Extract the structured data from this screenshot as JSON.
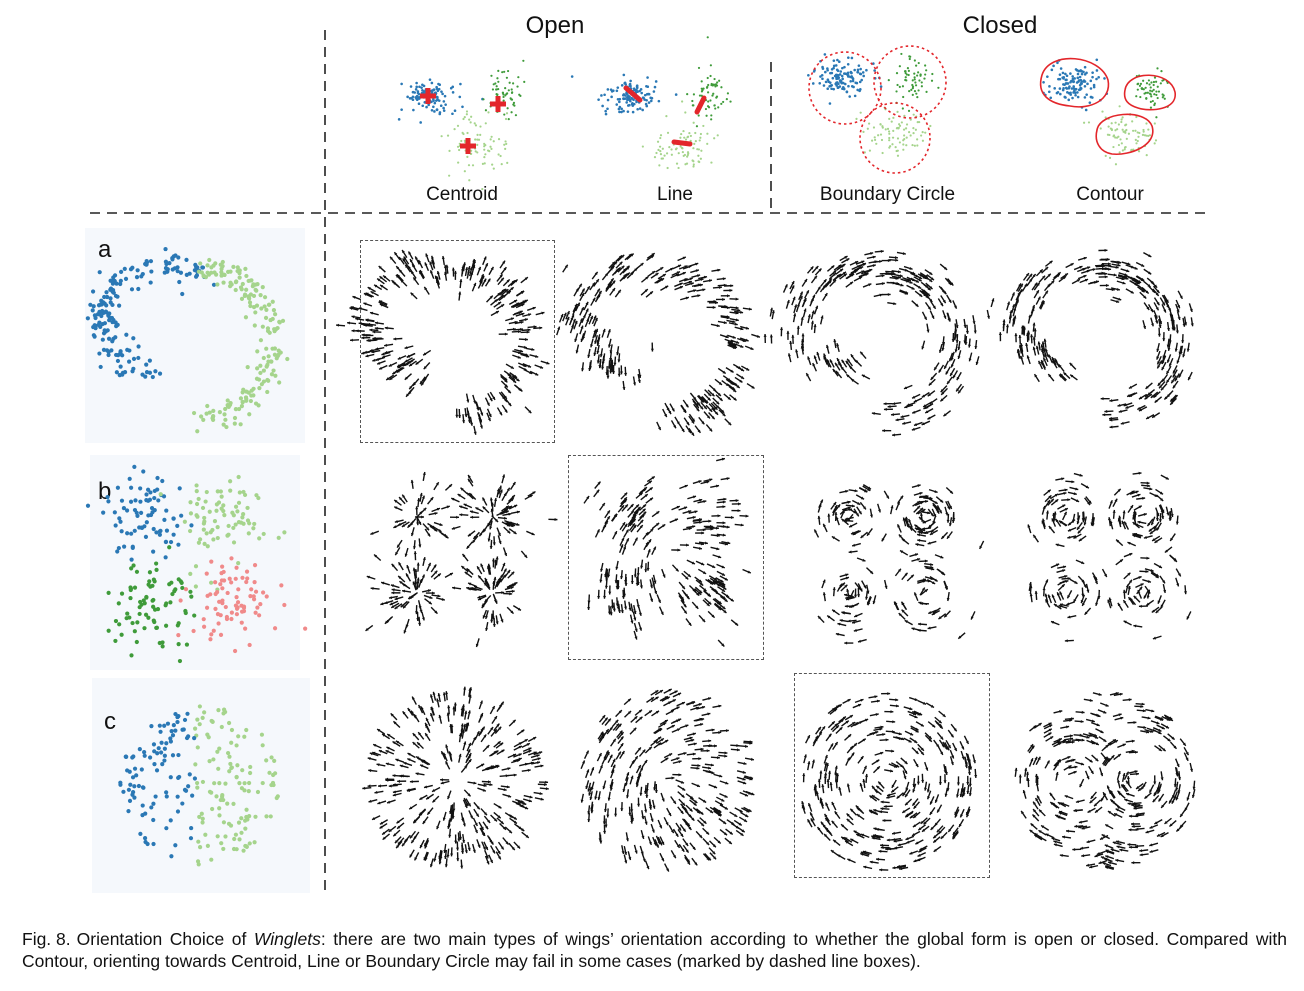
{
  "header": {
    "open": "Open",
    "closed": "Closed"
  },
  "methods": [
    "Centroid",
    "Line",
    "Boundary Circle",
    "Contour"
  ],
  "rows": [
    "a",
    "b",
    "c"
  ],
  "colors": {
    "blue": "#2a78b5",
    "green": "#3f9b3a",
    "light_green": "#a5d48c",
    "red": "#f08a8a",
    "marker": "#e3262b",
    "arrow": "#111111"
  },
  "failure_boxes": [
    {
      "row": "a",
      "method": "Centroid"
    },
    {
      "row": "b",
      "method": "Line"
    },
    {
      "row": "c",
      "method": "Boundary Circle"
    }
  ],
  "caption": {
    "label": "Fig. 8.",
    "text_before": "Orientation Choice of ",
    "emph": "Winglets",
    "text_after": ": there are two main types of wings’ orientation according to whether the global form is open or closed. Compared with Contour, orienting towards Centroid, Line or Boundary Circle may fail in some cases (marked by dashed line boxes)."
  }
}
